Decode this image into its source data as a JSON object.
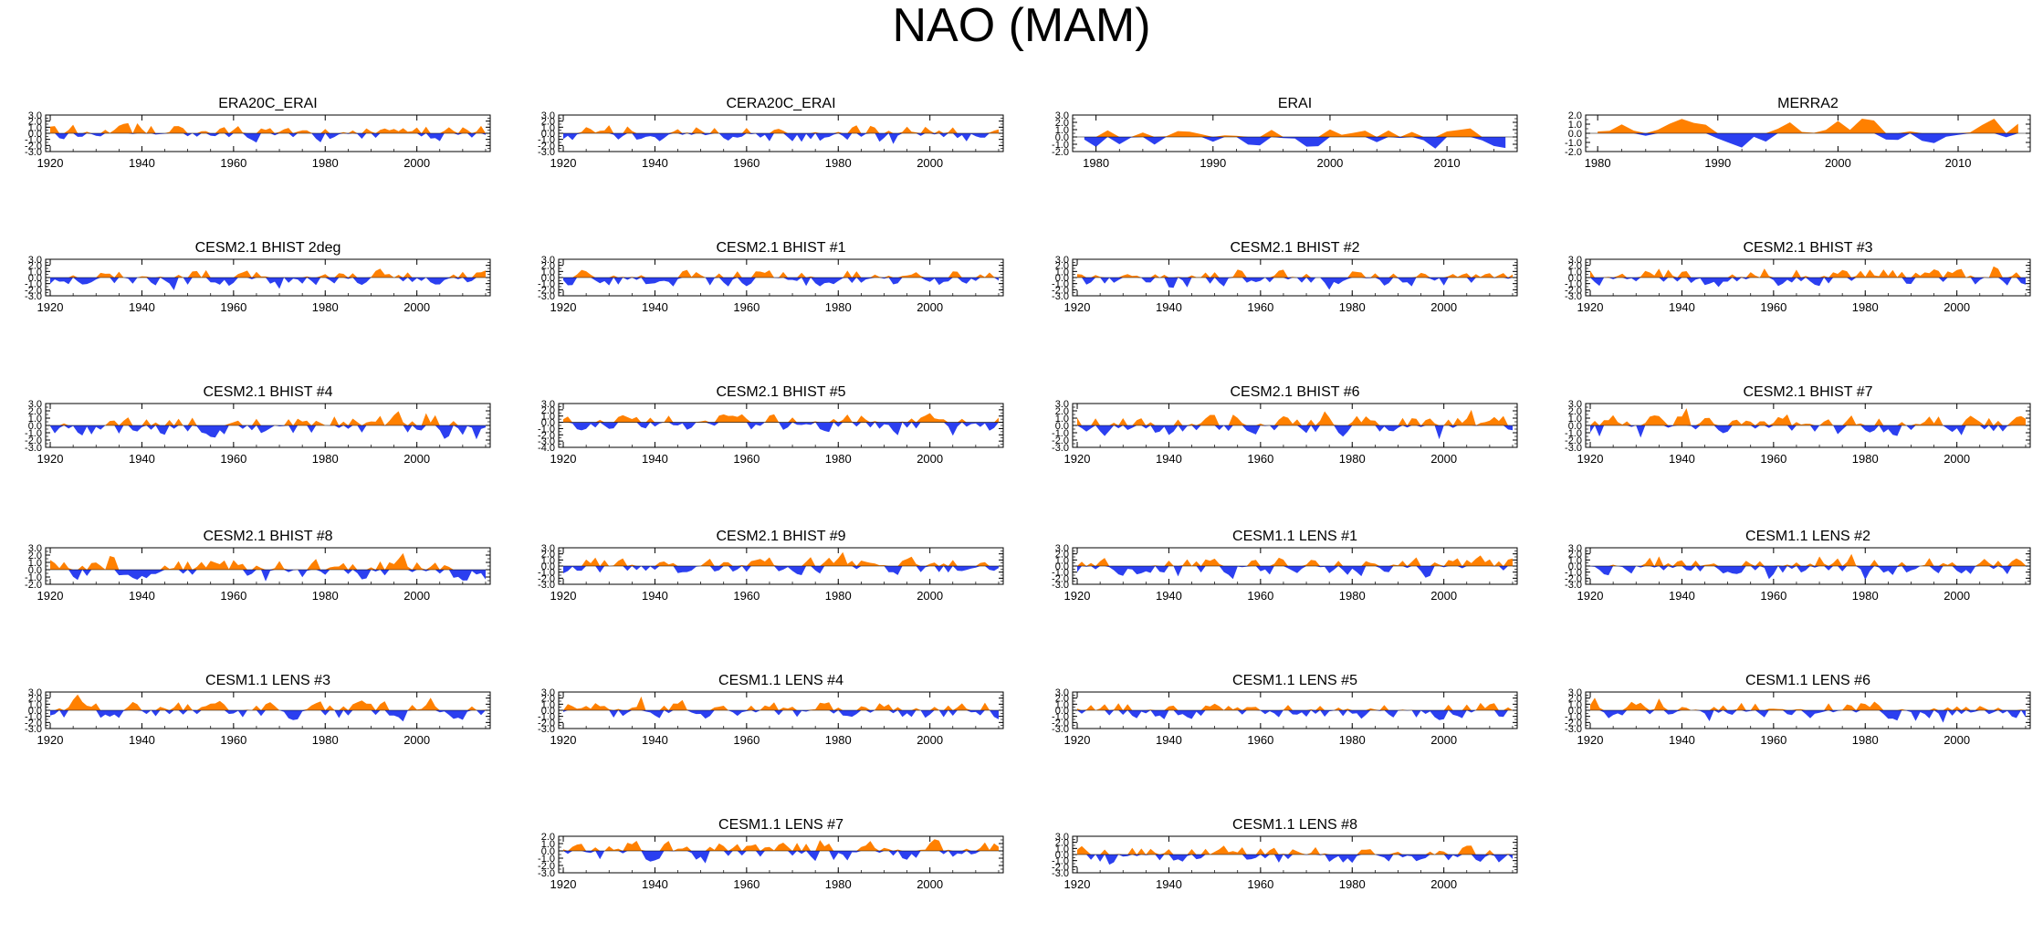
{
  "title": "NAO (MAM)",
  "colors": {
    "positive": "#ff8000",
    "negative": "#2b3ff0",
    "axis": "#000000"
  },
  "chart_data": [
    {
      "type": "area",
      "title": "ERA20C_ERAI",
      "x_range": [
        1919,
        2016
      ],
      "xticks": [
        1920,
        1940,
        1960,
        1980,
        2000
      ],
      "ylim": [
        -3,
        3
      ],
      "yticks": [
        "3.0",
        "2.0",
        "1.0",
        "0.0",
        "-1.0",
        "-2.0",
        "-3.0"
      ],
      "seed": 11
    },
    {
      "type": "area",
      "title": "CERA20C_ERAI",
      "x_range": [
        1919,
        2016
      ],
      "xticks": [
        1920,
        1940,
        1960,
        1980,
        2000
      ],
      "ylim": [
        -3,
        3
      ],
      "yticks": [
        "3.0",
        "2.0",
        "1.0",
        "0.0",
        "-1.0",
        "-2.0",
        "-3.0"
      ],
      "seed": 12
    },
    {
      "type": "area",
      "title": "ERAI",
      "x_range": [
        1978,
        2016
      ],
      "xticks": [
        1980,
        1990,
        2000,
        2010
      ],
      "ylim": [
        -2,
        3
      ],
      "yticks": [
        "3.0",
        "2.0",
        "1.0",
        "0.0",
        "-1.0",
        "-2.0"
      ],
      "seed": 13
    },
    {
      "type": "area",
      "title": "MERRA2",
      "x_range": [
        1979,
        2016
      ],
      "xticks": [
        1980,
        1990,
        2000,
        2010
      ],
      "ylim": [
        -2,
        2
      ],
      "yticks": [
        "2.0",
        "1.0",
        "0.0",
        "-1.0",
        "-2.0"
      ],
      "seed": 14
    },
    {
      "type": "area",
      "title": "CESM2.1 BHIST 2deg",
      "x_range": [
        1919,
        2016
      ],
      "xticks": [
        1920,
        1940,
        1960,
        1980,
        2000
      ],
      "ylim": [
        -3,
        3
      ],
      "yticks": [
        "3.0",
        "2.0",
        "1.0",
        "0.0",
        "-1.0",
        "-2.0",
        "-3.0"
      ],
      "seed": 21
    },
    {
      "type": "area",
      "title": "CESM2.1 BHIST #1",
      "x_range": [
        1919,
        2016
      ],
      "xticks": [
        1920,
        1940,
        1960,
        1980,
        2000
      ],
      "ylim": [
        -3,
        3
      ],
      "yticks": [
        "3.0",
        "2.0",
        "1.0",
        "0.0",
        "-1.0",
        "-2.0",
        "-3.0"
      ],
      "seed": 22
    },
    {
      "type": "area",
      "title": "CESM2.1 BHIST #2",
      "x_range": [
        1919,
        2016
      ],
      "xticks": [
        1920,
        1940,
        1960,
        1980,
        2000
      ],
      "ylim": [
        -3,
        3
      ],
      "yticks": [
        "3.0",
        "2.0",
        "1.0",
        "0.0",
        "-1.0",
        "-2.0",
        "-3.0"
      ],
      "seed": 23
    },
    {
      "type": "area",
      "title": "CESM2.1 BHIST #3",
      "x_range": [
        1919,
        2016
      ],
      "xticks": [
        1920,
        1940,
        1960,
        1980,
        2000
      ],
      "ylim": [
        -3,
        3
      ],
      "yticks": [
        "3.0",
        "2.0",
        "1.0",
        "0.0",
        "-1.0",
        "-2.0",
        "-3.0"
      ],
      "seed": 24
    },
    {
      "type": "area",
      "title": "CESM2.1 BHIST #4",
      "x_range": [
        1919,
        2016
      ],
      "xticks": [
        1920,
        1940,
        1960,
        1980,
        2000
      ],
      "ylim": [
        -3,
        3
      ],
      "yticks": [
        "3.0",
        "2.0",
        "1.0",
        "0.0",
        "-1.0",
        "-2.0",
        "-3.0"
      ],
      "seed": 31
    },
    {
      "type": "area",
      "title": "CESM2.1 BHIST #5",
      "x_range": [
        1919,
        2016
      ],
      "xticks": [
        1920,
        1940,
        1960,
        1980,
        2000
      ],
      "ylim": [
        -4,
        3
      ],
      "yticks": [
        "3.0",
        "2.0",
        "1.0",
        "0.0",
        "-1.0",
        "-2.0",
        "-3.0",
        "-4.0"
      ],
      "seed": 32
    },
    {
      "type": "area",
      "title": "CESM2.1 BHIST #6",
      "x_range": [
        1919,
        2016
      ],
      "xticks": [
        1920,
        1940,
        1960,
        1980,
        2000
      ],
      "ylim": [
        -3,
        3
      ],
      "yticks": [
        "3.0",
        "2.0",
        "1.0",
        "0.0",
        "-1.0",
        "-2.0",
        "-3.0"
      ],
      "seed": 33
    },
    {
      "type": "area",
      "title": "CESM2.1 BHIST #7",
      "x_range": [
        1919,
        2016
      ],
      "xticks": [
        1920,
        1940,
        1960,
        1980,
        2000
      ],
      "ylim": [
        -3,
        3
      ],
      "yticks": [
        "3.0",
        "2.0",
        "1.0",
        "0.0",
        "-1.0",
        "-2.0",
        "-3.0"
      ],
      "seed": 34
    },
    {
      "type": "area",
      "title": "CESM2.1 BHIST #8",
      "x_range": [
        1919,
        2016
      ],
      "xticks": [
        1920,
        1940,
        1960,
        1980,
        2000
      ],
      "ylim": [
        -2,
        3
      ],
      "yticks": [
        "3.0",
        "2.0",
        "1.0",
        "0.0",
        "-1.0",
        "-2.0"
      ],
      "seed": 41
    },
    {
      "type": "area",
      "title": "CESM2.1 BHIST #9",
      "x_range": [
        1919,
        2016
      ],
      "xticks": [
        1920,
        1940,
        1960,
        1980,
        2000
      ],
      "ylim": [
        -3,
        3
      ],
      "yticks": [
        "3.0",
        "2.0",
        "1.0",
        "0.0",
        "-1.0",
        "-2.0",
        "-3.0"
      ],
      "seed": 42
    },
    {
      "type": "area",
      "title": "CESM1.1 LENS #1",
      "x_range": [
        1919,
        2016
      ],
      "xticks": [
        1920,
        1940,
        1960,
        1980,
        2000
      ],
      "ylim": [
        -3,
        3
      ],
      "yticks": [
        "3.0",
        "2.0",
        "1.0",
        "0.0",
        "-1.0",
        "-2.0",
        "-3.0"
      ],
      "seed": 43
    },
    {
      "type": "area",
      "title": "CESM1.1 LENS #2",
      "x_range": [
        1919,
        2016
      ],
      "xticks": [
        1920,
        1940,
        1960,
        1980,
        2000
      ],
      "ylim": [
        -3,
        3
      ],
      "yticks": [
        "3.0",
        "2.0",
        "1.0",
        "0.0",
        "-1.0",
        "-2.0",
        "-3.0"
      ],
      "seed": 44
    },
    {
      "type": "area",
      "title": "CESM1.1 LENS #3",
      "x_range": [
        1919,
        2016
      ],
      "xticks": [
        1920,
        1940,
        1960,
        1980,
        2000
      ],
      "ylim": [
        -3,
        3
      ],
      "yticks": [
        "3.0",
        "2.0",
        "1.0",
        "0.0",
        "-1.0",
        "-2.0",
        "-3.0"
      ],
      "seed": 51
    },
    {
      "type": "area",
      "title": "CESM1.1 LENS #4",
      "x_range": [
        1919,
        2016
      ],
      "xticks": [
        1920,
        1940,
        1960,
        1980,
        2000
      ],
      "ylim": [
        -3,
        3
      ],
      "yticks": [
        "3.0",
        "2.0",
        "1.0",
        "0.0",
        "-1.0",
        "-2.0",
        "-3.0"
      ],
      "seed": 52
    },
    {
      "type": "area",
      "title": "CESM1.1 LENS #5",
      "x_range": [
        1919,
        2016
      ],
      "xticks": [
        1920,
        1940,
        1960,
        1980,
        2000
      ],
      "ylim": [
        -3,
        3
      ],
      "yticks": [
        "3.0",
        "2.0",
        "1.0",
        "0.0",
        "-1.0",
        "-2.0",
        "-3.0"
      ],
      "seed": 53
    },
    {
      "type": "area",
      "title": "CESM1.1 LENS #6",
      "x_range": [
        1919,
        2016
      ],
      "xticks": [
        1920,
        1940,
        1960,
        1980,
        2000
      ],
      "ylim": [
        -3,
        3
      ],
      "yticks": [
        "3.0",
        "2.0",
        "1.0",
        "0.0",
        "-1.0",
        "-2.0",
        "-3.0"
      ],
      "seed": 54
    },
    {
      "type": "area",
      "title": "CESM1.1 LENS #7",
      "x_range": [
        1919,
        2016
      ],
      "xticks": [
        1920,
        1940,
        1960,
        1980,
        2000
      ],
      "ylim": [
        -3,
        2
      ],
      "yticks": [
        "2.0",
        "1.0",
        "0.0",
        "-1.0",
        "-2.0",
        "-3.0"
      ],
      "seed": 62
    },
    {
      "type": "area",
      "title": "CESM1.1 LENS #8",
      "x_range": [
        1919,
        2016
      ],
      "xticks": [
        1920,
        1940,
        1960,
        1980,
        2000
      ],
      "ylim": [
        -3,
        3
      ],
      "yticks": [
        "3.0",
        "2.0",
        "1.0",
        "0.0",
        "-1.0",
        "-2.0",
        "-3.0"
      ],
      "seed": 63
    }
  ]
}
